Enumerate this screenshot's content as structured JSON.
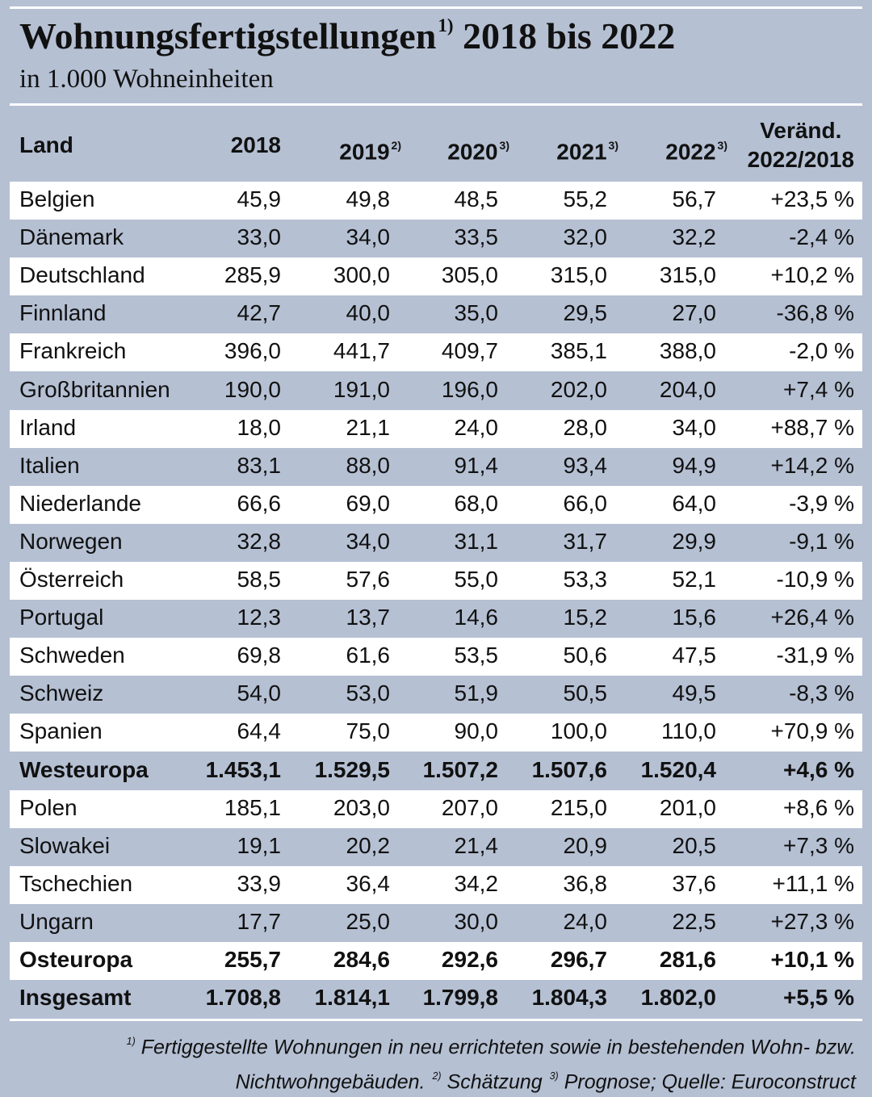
{
  "header": {
    "title": "Wohnungsfertigstellungen",
    "title_note": "1)",
    "title_rest": "2018 bis 2022",
    "subtitle": "in 1.000 Wohneinheiten"
  },
  "table": {
    "columns": [
      {
        "label": "Land"
      },
      {
        "label": "2018"
      },
      {
        "label": "2019",
        "note": "2)"
      },
      {
        "label": "2020",
        "note": "3)"
      },
      {
        "label": "2021",
        "note": "3)"
      },
      {
        "label": "2022",
        "note": "3)"
      },
      {
        "label": "Veränd.",
        "label2": "2022/2018"
      }
    ],
    "rows": [
      {
        "cells": [
          "Belgien",
          "45,9",
          "49,8",
          "48,5",
          "55,2",
          "56,7",
          "+23,5 %"
        ]
      },
      {
        "cells": [
          "Dänemark",
          "33,0",
          "34,0",
          "33,5",
          "32,0",
          "32,2",
          "-2,4 %"
        ]
      },
      {
        "cells": [
          "Deutschland",
          "285,9",
          "300,0",
          "305,0",
          "315,0",
          "315,0",
          "+10,2 %"
        ]
      },
      {
        "cells": [
          "Finnland",
          "42,7",
          "40,0",
          "35,0",
          "29,5",
          "27,0",
          "-36,8 %"
        ]
      },
      {
        "cells": [
          "Frankreich",
          "396,0",
          "441,7",
          "409,7",
          "385,1",
          "388,0",
          "-2,0 %"
        ]
      },
      {
        "cells": [
          "Großbritannien",
          "190,0",
          "191,0",
          "196,0",
          "202,0",
          "204,0",
          "+7,4 %"
        ]
      },
      {
        "cells": [
          "Irland",
          "18,0",
          "21,1",
          "24,0",
          "28,0",
          "34,0",
          "+88,7 %"
        ]
      },
      {
        "cells": [
          "Italien",
          "83,1",
          "88,0",
          "91,4",
          "93,4",
          "94,9",
          "+14,2 %"
        ]
      },
      {
        "cells": [
          "Niederlande",
          "66,6",
          "69,0",
          "68,0",
          "66,0",
          "64,0",
          "-3,9 %"
        ]
      },
      {
        "cells": [
          "Norwegen",
          "32,8",
          "34,0",
          "31,1",
          "31,7",
          "29,9",
          "-9,1 %"
        ]
      },
      {
        "cells": [
          "Österreich",
          "58,5",
          "57,6",
          "55,0",
          "53,3",
          "52,1",
          "-10,9 %"
        ]
      },
      {
        "cells": [
          "Portugal",
          "12,3",
          "13,7",
          "14,6",
          "15,2",
          "15,6",
          "+26,4 %"
        ]
      },
      {
        "cells": [
          "Schweden",
          "69,8",
          "61,6",
          "53,5",
          "50,6",
          "47,5",
          "-31,9 %"
        ]
      },
      {
        "cells": [
          "Schweiz",
          "54,0",
          "53,0",
          "51,9",
          "50,5",
          "49,5",
          "-8,3 %"
        ]
      },
      {
        "cells": [
          "Spanien",
          "64,4",
          "75,0",
          "90,0",
          "100,0",
          "110,0",
          "+70,9 %"
        ]
      },
      {
        "cells": [
          "Westeuropa",
          "1.453,1",
          "1.529,5",
          "1.507,2",
          "1.507,6",
          "1.520,4",
          "+4,6 %"
        ],
        "bold": true
      },
      {
        "cells": [
          "Polen",
          "185,1",
          "203,0",
          "207,0",
          "215,0",
          "201,0",
          "+8,6 %"
        ]
      },
      {
        "cells": [
          "Slowakei",
          "19,1",
          "20,2",
          "21,4",
          "20,9",
          "20,5",
          "+7,3 %"
        ]
      },
      {
        "cells": [
          "Tschechien",
          "33,9",
          "36,4",
          "34,2",
          "36,8",
          "37,6",
          "+11,1 %"
        ]
      },
      {
        "cells": [
          "Ungarn",
          "17,7",
          "25,0",
          "30,0",
          "24,0",
          "22,5",
          "+27,3 %"
        ]
      },
      {
        "cells": [
          "Osteuropa",
          "255,7",
          "284,6",
          "292,6",
          "296,7",
          "281,6",
          "+10,1 %"
        ],
        "bold": true
      },
      {
        "cells": [
          "Insgesamt",
          "1.708,8",
          "1.814,1",
          "1.799,8",
          "1.804,3",
          "1.802,0",
          "+5,5 %"
        ],
        "bold": true
      }
    ]
  },
  "footnotes": [
    {
      "mark": "1)",
      "text": "Fertiggestellte Wohnungen in neu errichteten sowie in bestehenden Wohn- bzw. Nichtwohngebäuden."
    },
    {
      "mark": "2)",
      "text": "Schätzung"
    },
    {
      "mark": "3)",
      "text": "Prognose; Quelle: Euroconstruct"
    }
  ]
}
